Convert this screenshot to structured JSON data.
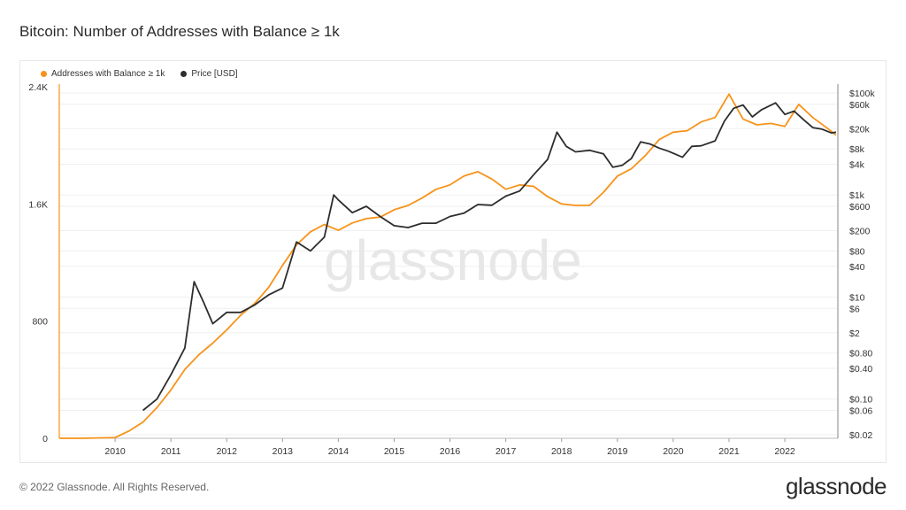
{
  "title": "Bitcoin: Number of Addresses with Balance ≥ 1k",
  "footer": "© 2022 Glassnode. All Rights Reserved.",
  "brand": "glassnode",
  "watermark": "glassnode",
  "colors": {
    "addresses": "#f7931a",
    "price": "#2d2d2d",
    "grid": "#efefef"
  },
  "chart_data": {
    "type": "line",
    "legend": [
      "Addresses with Balance ≥ 1k",
      "Price [USD]"
    ],
    "legend_position": "top-left",
    "grid": true,
    "x_ticks": [
      "2010",
      "2011",
      "2012",
      "2013",
      "2014",
      "2015",
      "2016",
      "2017",
      "2018",
      "2019",
      "2020",
      "2021",
      "2022"
    ],
    "y_left": {
      "ticks": [
        "0",
        "800",
        "1.6K",
        "2.4K"
      ],
      "ylim": [
        0,
        2400
      ]
    },
    "y_right": {
      "scale": "log",
      "ticks": [
        "$100k",
        "$60k",
        "$20k",
        "$8k",
        "$4k",
        "$1k",
        "$600",
        "$200",
        "$80",
        "$40",
        "$10",
        "$6",
        "$2",
        "$0.80",
        "$0.40",
        "$0.10",
        "$0.06",
        "$0.02"
      ]
    },
    "series": [
      {
        "name": "Addresses with Balance ≥ 1k",
        "axis": "left",
        "points": [
          [
            "2009-01",
            0
          ],
          [
            "2009-06",
            0
          ],
          [
            "2010-01",
            5
          ],
          [
            "2010-04",
            50
          ],
          [
            "2010-07",
            110
          ],
          [
            "2010-10",
            210
          ],
          [
            "2011-01",
            330
          ],
          [
            "2011-04",
            470
          ],
          [
            "2011-07",
            570
          ],
          [
            "2011-10",
            650
          ],
          [
            "2012-01",
            740
          ],
          [
            "2012-04",
            840
          ],
          [
            "2012-07",
            920
          ],
          [
            "2012-10",
            1030
          ],
          [
            "2013-01",
            1180
          ],
          [
            "2013-04",
            1320
          ],
          [
            "2013-07",
            1410
          ],
          [
            "2013-10",
            1460
          ],
          [
            "2014-01",
            1420
          ],
          [
            "2014-04",
            1470
          ],
          [
            "2014-07",
            1500
          ],
          [
            "2014-10",
            1510
          ],
          [
            "2015-01",
            1560
          ],
          [
            "2015-04",
            1590
          ],
          [
            "2015-07",
            1640
          ],
          [
            "2015-10",
            1700
          ],
          [
            "2016-01",
            1730
          ],
          [
            "2016-04",
            1790
          ],
          [
            "2016-07",
            1820
          ],
          [
            "2016-10",
            1770
          ],
          [
            "2017-01",
            1700
          ],
          [
            "2017-04",
            1730
          ],
          [
            "2017-07",
            1720
          ],
          [
            "2017-10",
            1650
          ],
          [
            "2018-01",
            1600
          ],
          [
            "2018-04",
            1590
          ],
          [
            "2018-07",
            1590
          ],
          [
            "2018-10",
            1680
          ],
          [
            "2019-01",
            1790
          ],
          [
            "2019-04",
            1840
          ],
          [
            "2019-07",
            1930
          ],
          [
            "2019-10",
            2040
          ],
          [
            "2020-01",
            2090
          ],
          [
            "2020-04",
            2100
          ],
          [
            "2020-07",
            2160
          ],
          [
            "2020-10",
            2190
          ],
          [
            "2021-01",
            2350
          ],
          [
            "2021-04",
            2180
          ],
          [
            "2021-07",
            2140
          ],
          [
            "2021-10",
            2150
          ],
          [
            "2022-01",
            2130
          ],
          [
            "2022-04",
            2280
          ],
          [
            "2022-07",
            2190
          ],
          [
            "2022-10",
            2120
          ],
          [
            "2022-12",
            2070
          ]
        ]
      },
      {
        "name": "Price [USD]",
        "axis": "right",
        "points": [
          [
            "2010-07",
            0.06
          ],
          [
            "2010-10",
            0.1
          ],
          [
            "2011-01",
            0.3
          ],
          [
            "2011-04",
            1.0
          ],
          [
            "2011-06",
            20
          ],
          [
            "2011-08",
            8
          ],
          [
            "2011-10",
            3
          ],
          [
            "2012-01",
            5
          ],
          [
            "2012-04",
            5
          ],
          [
            "2012-07",
            7
          ],
          [
            "2012-10",
            11
          ],
          [
            "2013-01",
            15
          ],
          [
            "2013-04",
            120
          ],
          [
            "2013-07",
            80
          ],
          [
            "2013-10",
            150
          ],
          [
            "2013-12",
            1000
          ],
          [
            "2014-01",
            800
          ],
          [
            "2014-04",
            450
          ],
          [
            "2014-07",
            600
          ],
          [
            "2014-10",
            380
          ],
          [
            "2015-01",
            250
          ],
          [
            "2015-04",
            230
          ],
          [
            "2015-07",
            280
          ],
          [
            "2015-10",
            280
          ],
          [
            "2016-01",
            380
          ],
          [
            "2016-04",
            440
          ],
          [
            "2016-07",
            650
          ],
          [
            "2016-10",
            630
          ],
          [
            "2017-01",
            950
          ],
          [
            "2017-04",
            1200
          ],
          [
            "2017-07",
            2500
          ],
          [
            "2017-10",
            5000
          ],
          [
            "2017-12",
            17000
          ],
          [
            "2018-02",
            9000
          ],
          [
            "2018-04",
            7000
          ],
          [
            "2018-07",
            7500
          ],
          [
            "2018-10",
            6400
          ],
          [
            "2018-12",
            3500
          ],
          [
            "2019-02",
            3800
          ],
          [
            "2019-04",
            5200
          ],
          [
            "2019-06",
            11000
          ],
          [
            "2019-08",
            10000
          ],
          [
            "2019-10",
            8300
          ],
          [
            "2019-12",
            7200
          ],
          [
            "2020-03",
            5500
          ],
          [
            "2020-05",
            9000
          ],
          [
            "2020-07",
            9200
          ],
          [
            "2020-10",
            11500
          ],
          [
            "2020-12",
            28000
          ],
          [
            "2021-02",
            50000
          ],
          [
            "2021-04",
            58000
          ],
          [
            "2021-06",
            34000
          ],
          [
            "2021-08",
            47000
          ],
          [
            "2021-11",
            64000
          ],
          [
            "2022-01",
            38000
          ],
          [
            "2022-03",
            44000
          ],
          [
            "2022-05",
            30000
          ],
          [
            "2022-07",
            21000
          ],
          [
            "2022-09",
            19500
          ],
          [
            "2022-11",
            16500
          ],
          [
            "2022-12",
            17000
          ]
        ]
      }
    ]
  }
}
